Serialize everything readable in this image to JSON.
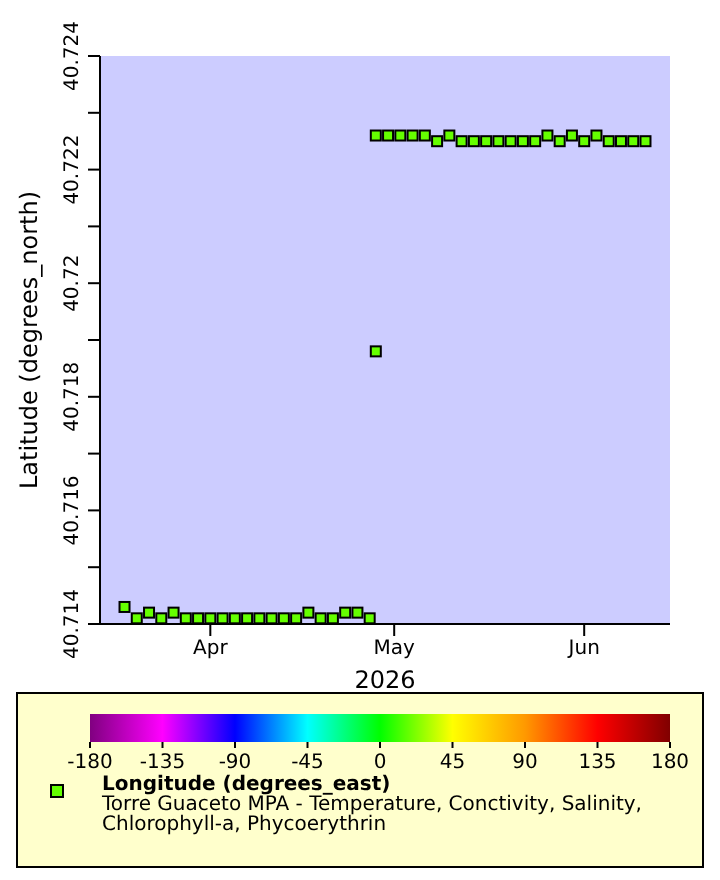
{
  "chart_data": {
    "type": "scatter",
    "xlabel": "2026",
    "ylabel": "Latitude (degrees_north)",
    "clabel": "Longitude (degrees_east)",
    "xlim": [
      "2026-03-14",
      "2026-06-15"
    ],
    "xticks": [
      {
        "value": "2026-04-01",
        "label": "Apr"
      },
      {
        "value": "2026-05-01",
        "label": "May"
      },
      {
        "value": "2026-06-01",
        "label": "Jun"
      }
    ],
    "ylim": [
      40.714,
      40.724
    ],
    "yticks": [
      40.714,
      {
        "value": 40.715,
        "label": null
      },
      40.716,
      {
        "value": 40.717,
        "label": null
      },
      40.718,
      {
        "value": 40.719,
        "label": null
      },
      40.72,
      {
        "value": 40.721,
        "label": null
      },
      40.722,
      {
        "value": 40.723,
        "label": null
      },
      40.724
    ],
    "clim": [
      -180,
      180
    ],
    "cticks": [
      -180,
      -135,
      -90,
      -45,
      0,
      45,
      90,
      135,
      180
    ],
    "marker": "square",
    "series": [
      {
        "x": [
          "2026-03-18",
          "2026-03-20",
          "2026-03-22",
          "2026-03-24",
          "2026-03-26",
          "2026-03-28",
          "2026-03-30",
          "2026-04-01",
          "2026-04-03",
          "2026-04-05",
          "2026-04-07",
          "2026-04-09",
          "2026-04-11",
          "2026-04-13",
          "2026-04-15",
          "2026-04-17",
          "2026-04-19",
          "2026-04-21",
          "2026-04-23",
          "2026-04-25",
          "2026-04-27",
          "2026-04-28",
          "2026-04-28",
          "2026-04-30",
          "2026-05-02",
          "2026-05-04",
          "2026-05-06",
          "2026-05-08",
          "2026-05-10",
          "2026-05-12",
          "2026-05-14",
          "2026-05-16",
          "2026-05-18",
          "2026-05-20",
          "2026-05-22",
          "2026-05-24",
          "2026-05-26",
          "2026-05-28",
          "2026-05-30",
          "2026-06-01",
          "2026-06-03",
          "2026-06-05",
          "2026-06-07",
          "2026-06-09",
          "2026-06-11"
        ],
        "values": [
          40.7143,
          40.7141,
          40.7142,
          40.7141,
          40.7142,
          40.7141,
          40.7141,
          40.7141,
          40.7141,
          40.7141,
          40.7141,
          40.7141,
          40.7141,
          40.7141,
          40.7141,
          40.7142,
          40.7141,
          40.7141,
          40.7142,
          40.7142,
          40.7141,
          40.7188,
          40.7226,
          40.7226,
          40.7226,
          40.7226,
          40.7226,
          40.7225,
          40.7226,
          40.7225,
          40.7225,
          40.7225,
          40.7225,
          40.7225,
          40.7225,
          40.7225,
          40.7226,
          40.7225,
          40.7226,
          40.7225,
          40.7226,
          40.7225,
          40.7225,
          40.7225,
          40.7225
        ],
        "cvalues": [
          17.8,
          17.8,
          17.8,
          17.8,
          17.8,
          17.8,
          17.8,
          17.8,
          17.8,
          17.8,
          17.8,
          17.8,
          17.8,
          17.8,
          17.8,
          17.8,
          17.8,
          17.8,
          17.8,
          17.8,
          17.8,
          17.8,
          17.8,
          17.8,
          17.8,
          17.8,
          17.8,
          17.8,
          17.8,
          17.8,
          17.8,
          17.8,
          17.8,
          17.8,
          17.8,
          17.8,
          17.8,
          17.8,
          17.8,
          17.8,
          17.8,
          17.8,
          17.8,
          17.8,
          17.8
        ]
      }
    ],
    "annotations": [
      "Torre Guaceto MPA - Temperature, Conctivity, Salinity,",
      "Chlorophyll-a, Phycoerythrin"
    ]
  }
}
